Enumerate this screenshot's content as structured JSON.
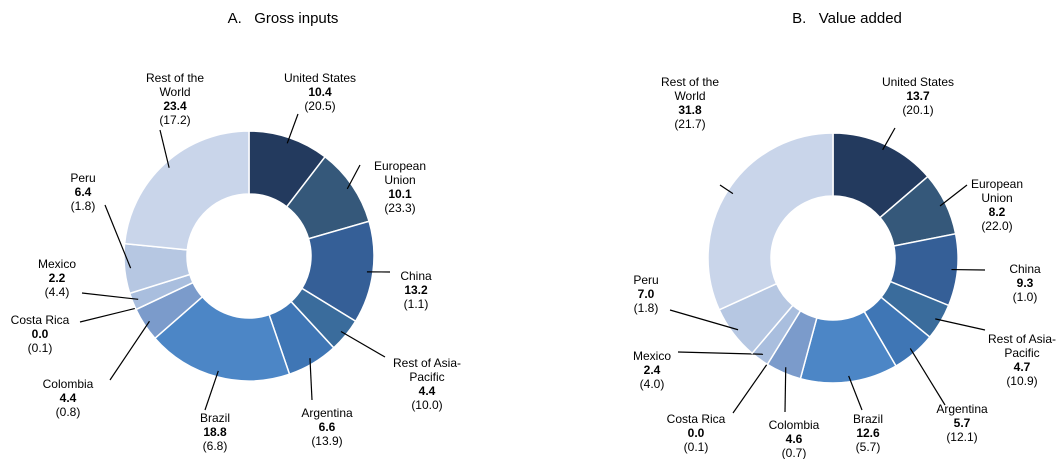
{
  "chart_data": [
    {
      "type": "pie",
      "donut": true,
      "title": "A.   Gross inputs",
      "categories": [
        "United States",
        "European Union",
        "China",
        "Rest of Asia-Pacific",
        "Argentina",
        "Brazil",
        "Colombia",
        "Costa Rica",
        "Mexico",
        "Peru",
        "Rest of the World"
      ],
      "values": [
        10.4,
        10.1,
        13.2,
        4.4,
        6.6,
        18.8,
        4.4,
        0.0,
        2.2,
        6.4,
        23.4
      ],
      "value_labels": [
        "10.4",
        "10.1",
        "13.2",
        "4.4",
        "6.6",
        "18.8",
        "4.4",
        "0.0",
        "2.2",
        "6.4",
        "23.4"
      ],
      "secondary_labels": [
        "(20.5)",
        "(23.3)",
        "(1.1)",
        "(10.0)",
        "(13.9)",
        "(6.8)",
        "(0.8)",
        "(0.1)",
        "(4.4)",
        "(1.8)",
        "(17.2)"
      ],
      "colors": [
        "#233a5e",
        "#35587a",
        "#355f97",
        "#3a6c9c",
        "#3f76b5",
        "#4c86c6",
        "#7b9bcb",
        "#9cb2d8",
        "#a9bede",
        "#b6c7e2",
        "#c9d5ea"
      ]
    },
    {
      "type": "pie",
      "donut": true,
      "title": "B.   Value added",
      "categories": [
        "United States",
        "European Union",
        "China",
        "Rest of Asia-Pacific",
        "Argentina",
        "Brazil",
        "Colombia",
        "Costa Rica",
        "Mexico",
        "Peru",
        "Rest of the World"
      ],
      "values": [
        13.7,
        8.2,
        9.3,
        4.7,
        5.7,
        12.6,
        4.6,
        0.0,
        2.4,
        7.0,
        31.8
      ],
      "value_labels": [
        "13.7",
        "8.2",
        "9.3",
        "4.7",
        "5.7",
        "12.6",
        "4.6",
        "0.0",
        "2.4",
        "7.0",
        "31.8"
      ],
      "secondary_labels": [
        "(20.1)",
        "(22.0)",
        "(1.0)",
        "(10.9)",
        "(12.1)",
        "(5.7)",
        "(0.7)",
        "(0.1)",
        "(4.0)",
        "(1.8)",
        "(21.7)"
      ],
      "colors": [
        "#233a5e",
        "#35587a",
        "#355f97",
        "#3a6c9c",
        "#3f76b5",
        "#4c86c6",
        "#7b9bcb",
        "#9cb2d8",
        "#a9bede",
        "#b6c7e2",
        "#c9d5ea"
      ]
    }
  ]
}
